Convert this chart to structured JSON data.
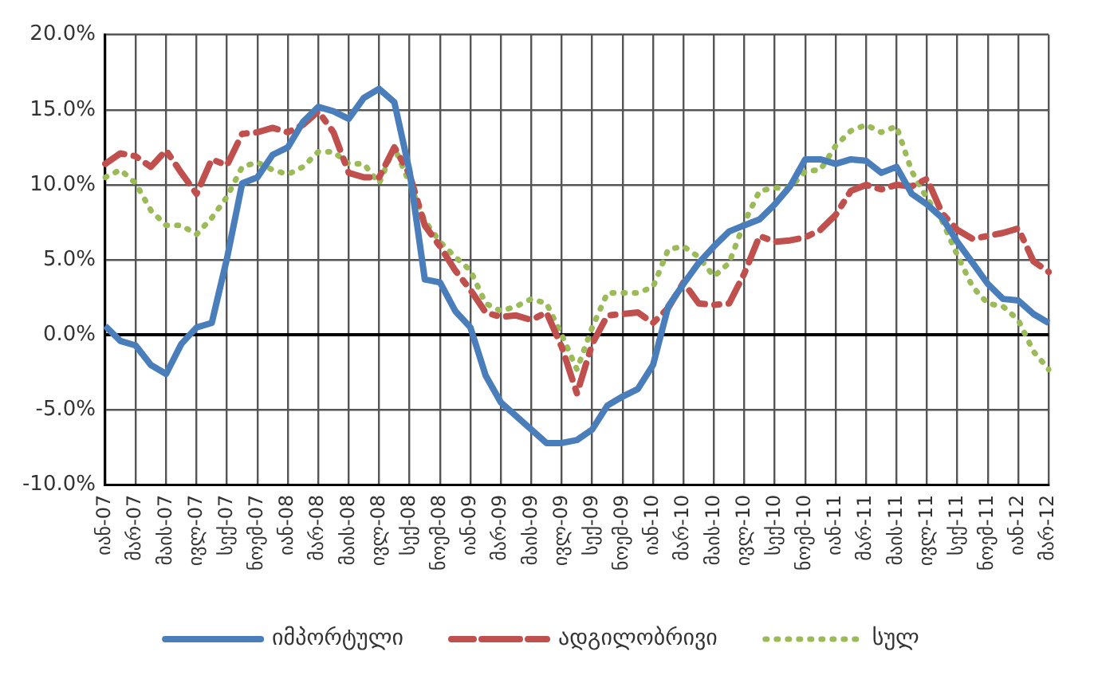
{
  "chart_data": {
    "type": "line",
    "categories": [
      "იან-07",
      null,
      "მარ-07",
      null,
      "მაის-07",
      null,
      "ივლ-07",
      null,
      "სექ-07",
      null,
      "ნოემ-07",
      null,
      "იან-08",
      null,
      "მარ-08",
      null,
      "მაის-08",
      null,
      "ივლ-08",
      null,
      "სექ-08",
      null,
      "ნოემ-08",
      null,
      "იან-09",
      null,
      "მარ-09",
      null,
      "მაის-09",
      null,
      "ივლ-09",
      null,
      "სექ-09",
      null,
      "ნოემ-09",
      null,
      "იან-10",
      null,
      "მარ-10",
      null,
      "მაის-10",
      null,
      "ივლ-10",
      null,
      "სექ-10",
      null,
      "ნოემ-10",
      null,
      "იან-11",
      null,
      "მარ-11",
      null,
      "მაის-11",
      null,
      "ივლ-11",
      null,
      "სექ-11",
      null,
      "ნოემ-11",
      null,
      "იან-12",
      null,
      "მარ-12"
    ],
    "series": [
      {
        "name": "იმპორტული",
        "color": "#4a7ebb",
        "line_style": "solid",
        "values": [
          0.6,
          -0.4,
          -0.7,
          -2.0,
          -2.6,
          -0.6,
          0.5,
          0.8,
          5.1,
          10.1,
          10.5,
          12.0,
          12.5,
          14.2,
          15.2,
          14.9,
          14.4,
          15.8,
          16.4,
          15.5,
          10.9,
          3.7,
          3.5,
          1.6,
          0.5,
          -2.7,
          -4.5,
          -5.4,
          -6.3,
          -7.2,
          -7.2,
          -7.0,
          -6.3,
          -4.7,
          -4.1,
          -3.6,
          -2.0,
          1.9,
          3.4,
          4.8,
          5.9,
          6.9,
          7.3,
          7.7,
          8.7,
          9.9,
          11.7,
          11.7,
          11.4,
          11.7,
          11.6,
          10.8,
          11.2,
          9.4,
          8.7,
          7.8,
          6.2,
          4.8,
          3.4,
          2.4,
          2.3,
          1.4,
          0.8
        ]
      },
      {
        "name": "ადგილობრივი",
        "color": "#c0504d",
        "line_style": "dashed",
        "values": [
          11.4,
          12.1,
          11.9,
          11.2,
          12.3,
          10.8,
          9.4,
          11.7,
          11.3,
          13.4,
          13.5,
          13.8,
          13.5,
          14.0,
          14.9,
          13.5,
          10.8,
          10.5,
          10.5,
          12.5,
          10.7,
          7.3,
          5.9,
          4.3,
          3.0,
          1.5,
          1.2,
          1.3,
          1.0,
          1.5,
          -0.8,
          -3.9,
          -0.6,
          1.3,
          1.4,
          1.5,
          0.8,
          1.8,
          3.5,
          2.1,
          2.0,
          2.1,
          4.1,
          6.6,
          6.2,
          6.3,
          6.5,
          7.0,
          8.0,
          9.6,
          10.0,
          9.7,
          10.0,
          9.9,
          10.4,
          8.1,
          7.0,
          6.4,
          6.6,
          6.8,
          7.1,
          4.9,
          4.2
        ]
      },
      {
        "name": "სულ",
        "color": "#9bbb59",
        "line_style": "dotted",
        "values": [
          10.5,
          11.0,
          10.1,
          8.3,
          7.3,
          7.3,
          6.7,
          7.8,
          9.2,
          11.2,
          11.5,
          11.0,
          10.7,
          11.2,
          12.2,
          12.2,
          11.4,
          11.4,
          10.1,
          12.5,
          10.1,
          7.6,
          6.2,
          5.2,
          4.3,
          2.1,
          1.6,
          1.9,
          2.4,
          2.1,
          0.0,
          -2.3,
          0.5,
          2.8,
          2.8,
          2.8,
          3.2,
          5.7,
          5.9,
          5.2,
          3.9,
          4.8,
          7.5,
          9.6,
          9.8,
          9.8,
          10.9,
          11.0,
          12.6,
          13.6,
          14.0,
          13.5,
          13.9,
          10.9,
          9.1,
          7.6,
          5.3,
          3.2,
          2.1,
          1.9,
          1.0,
          -1.1,
          -2.3
        ]
      }
    ],
    "ylim": [
      -10,
      20
    ],
    "yticks": [
      {
        "value": -10,
        "label": "-10.0%"
      },
      {
        "value": -5,
        "label": "-5.0%"
      },
      {
        "value": 0,
        "label": "0.0%"
      },
      {
        "value": 5,
        "label": "5.0%"
      },
      {
        "value": 10,
        "label": "10.0%"
      },
      {
        "value": 15,
        "label": "15.0%"
      },
      {
        "value": 20,
        "label": "20.0%"
      }
    ],
    "grid": true,
    "legend": "bottom"
  }
}
